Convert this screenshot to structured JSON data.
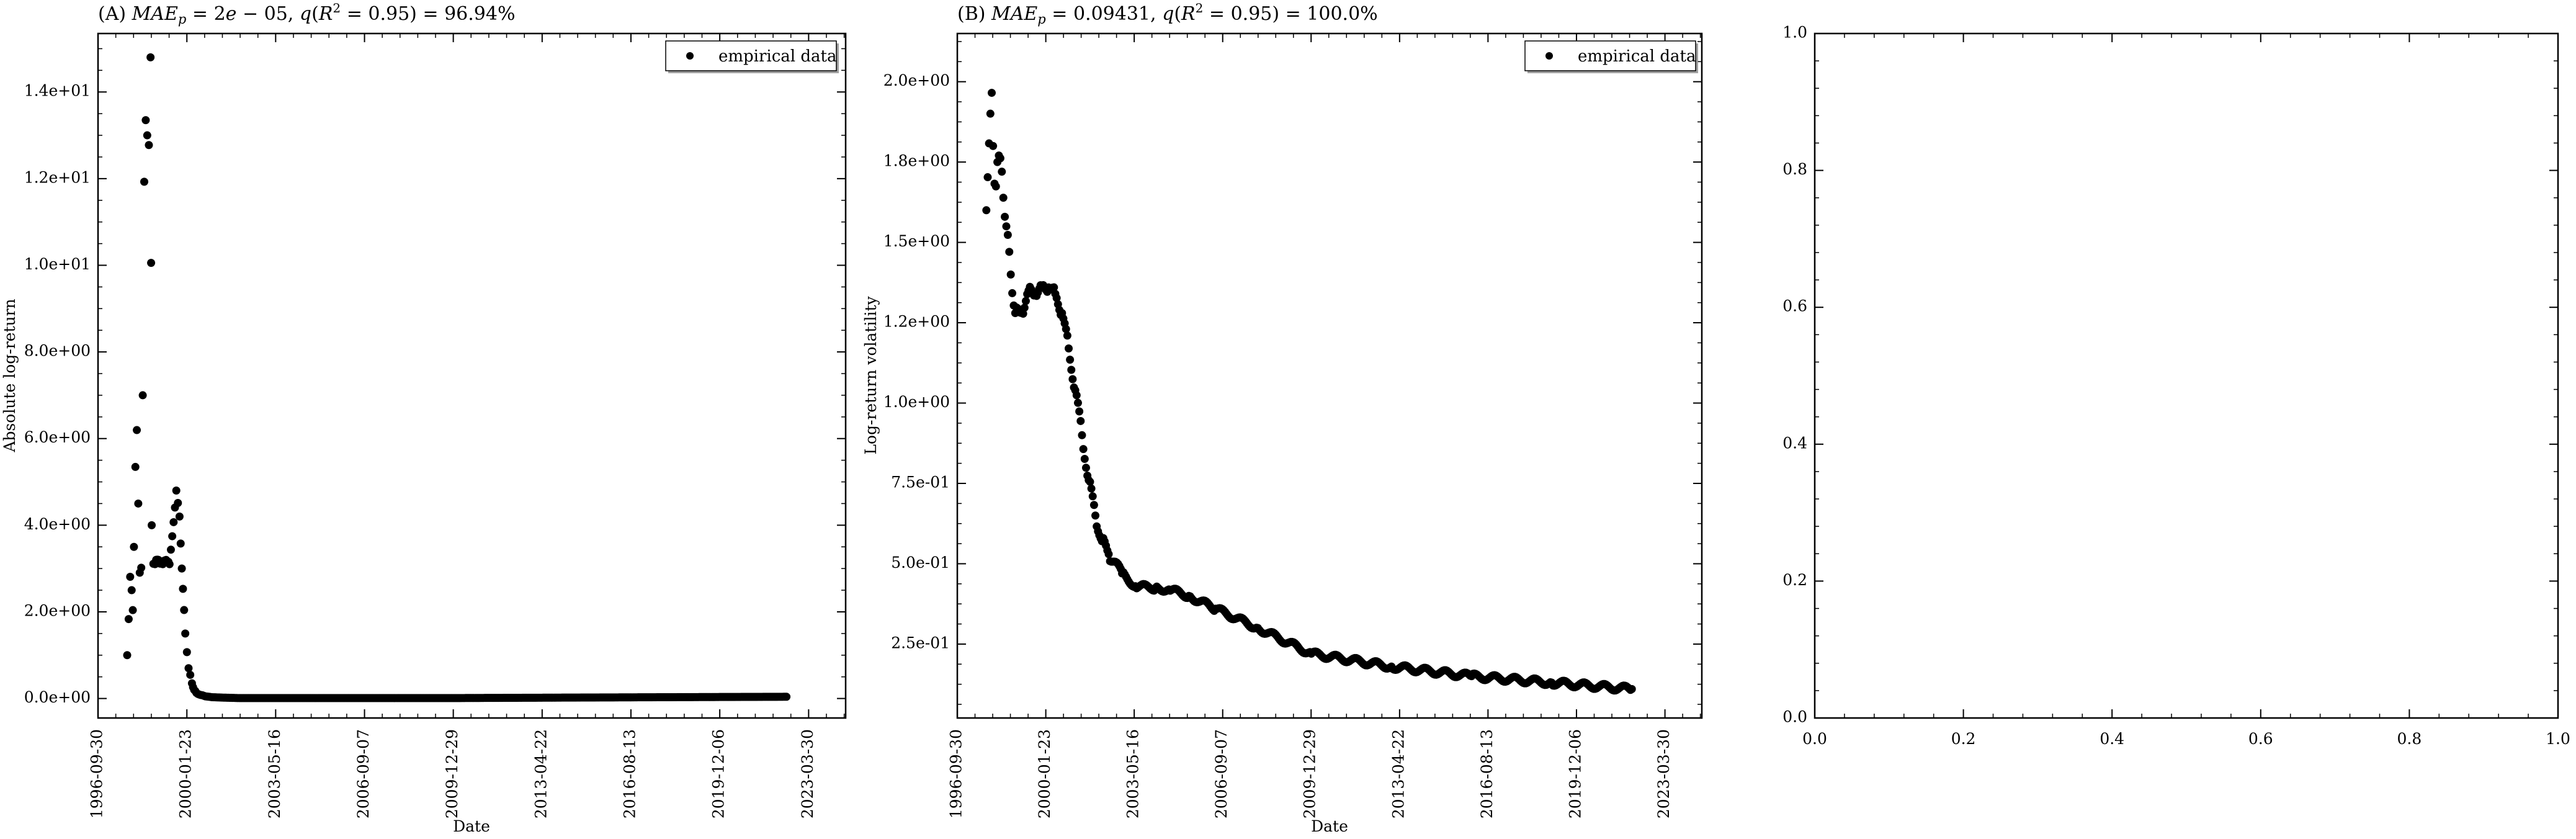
{
  "chart_data": [
    {
      "type": "scatter",
      "title": "(A) MAE_p = 2e − 05, q(R² = 0.95) = 96.94%",
      "xlabel": "Date",
      "ylabel": "Absolute log-return",
      "x_type": "date",
      "xlim": [
        "1996-09-30",
        "2024-08-15"
      ],
      "x_ticks": [
        "1996-09-30",
        "2000-01-23",
        "2003-05-16",
        "2006-09-07",
        "2009-12-29",
        "2013-04-22",
        "2016-08-13",
        "2019-12-06",
        "2023-03-30"
      ],
      "ylim": [
        -0.45,
        15.35
      ],
      "y_ticks": [
        0,
        2,
        4,
        6,
        8,
        10,
        12,
        14
      ],
      "y_tick_labels": [
        "0.0e+00",
        "2.0e+00",
        "4.0e+00",
        "6.0e+00",
        "8.0e+00",
        "1.0e+01",
        "1.2e+01",
        "1.4e+01"
      ],
      "legend": {
        "label": "empirical data",
        "position": "top-right"
      },
      "series": [
        {
          "style": "points",
          "color": "#000000",
          "x": [
            "1997-11-01",
            "1998-01-01",
            "1998-02-01",
            "1998-04-01",
            "1998-06-01",
            "1998-08-01",
            "1998-09-15",
            "1998-10-01",
            "1998-11-15",
            "1999-01-01",
            "1999-03-01",
            "1999-04-15",
            "1999-06-01",
            "1999-09-01",
            "1999-10-15",
            "1999-11-15",
            "2000-01-01",
            "2000-02-15",
            "2000-04-01",
            "2000-05-01",
            "2000-06-01",
            "2000-08-01",
            "2000-10-01",
            "2001-01-01",
            "2001-06-01",
            "2002-01-01",
            "2003-01-01",
            "2006-01-01",
            "2010-01-01",
            "2014-01-01",
            "2018-01-01",
            "2022-06-01"
          ],
          "y": [
            1.0,
            2.5,
            3.5,
            4.5,
            7.0,
            13.0,
            14.8,
            4.0,
            3.1,
            3.2,
            3.1,
            3.2,
            3.1,
            4.8,
            4.2,
            3.0,
            1.5,
            0.7,
            0.35,
            0.2,
            0.13,
            0.08,
            0.05,
            0.03,
            0.02,
            0.01,
            0.01,
            0.01,
            0.01,
            0.02,
            0.03,
            0.04
          ],
          "spread": [
            0.6,
            1.5,
            2.0,
            2.5,
            4.0,
            2.0,
            0.5,
            1.0,
            0.1,
            0.1,
            0.1,
            0.1,
            0.1,
            0.05,
            0.05,
            0.05,
            0.05,
            0.03,
            0.02,
            0.01,
            0.01,
            0.01,
            0.0,
            0.0,
            0.0,
            0.0,
            0.0,
            0.0,
            0.0,
            0.0,
            0.0,
            0.0
          ]
        }
      ]
    },
    {
      "type": "scatter",
      "title": "(B) MAE_p = 0.09431, q(R² = 0.95) = 100.0%",
      "xlabel": "Date",
      "ylabel": "Log-return volatility",
      "x_type": "date",
      "xlim": [
        "1996-09-30",
        "2024-08-15"
      ],
      "x_ticks": [
        "1996-09-30",
        "2000-01-23",
        "2003-05-16",
        "2006-09-07",
        "2009-12-29",
        "2013-04-22",
        "2016-08-13",
        "2019-12-06",
        "2023-03-30"
      ],
      "ylim": [
        0.02,
        2.15
      ],
      "y_ticks": [
        0.25,
        0.5,
        0.75,
        1.0,
        1.25,
        1.5,
        1.75,
        2.0
      ],
      "y_tick_labels": [
        "2.5e-01",
        "5.0e-01",
        "7.5e-01",
        "1.0e+00",
        "1.2e+00",
        "1.5e+00",
        "1.8e+00",
        "2.0e+00"
      ],
      "legend": {
        "label": "empirical data",
        "position": "top-right"
      },
      "series": [
        {
          "style": "points",
          "color": "#000000",
          "x": [
            "1997-11-01",
            "1998-02-01",
            "1998-04-01",
            "1998-06-01",
            "1998-08-01",
            "1998-10-01",
            "1998-12-01",
            "1999-03-01",
            "1999-06-01",
            "1999-09-01",
            "1999-12-01",
            "2000-03-01",
            "2000-06-01",
            "2000-09-01",
            "2000-12-01",
            "2001-03-01",
            "2001-06-01",
            "2001-09-01",
            "2001-12-01",
            "2002-03-01",
            "2002-06-01",
            "2002-12-01",
            "2003-06-01",
            "2004-03-01",
            "2004-09-01",
            "2005-06-01",
            "2006-06-01",
            "2008-01-01",
            "2010-01-01",
            "2013-01-01",
            "2016-01-01",
            "2019-01-01",
            "2022-01-01"
          ],
          "y": [
            1.6,
            1.8,
            1.75,
            1.72,
            1.55,
            1.4,
            1.28,
            1.28,
            1.35,
            1.34,
            1.36,
            1.36,
            1.34,
            1.28,
            1.17,
            1.04,
            0.9,
            0.76,
            0.65,
            0.57,
            0.53,
            0.47,
            0.43,
            0.425,
            0.42,
            0.4,
            0.36,
            0.3,
            0.22,
            0.18,
            0.15,
            0.13,
            0.11
          ],
          "spread": [
            0.15,
            0.25,
            0.05,
            0.03,
            0.03,
            0.02,
            0.02,
            0.02,
            0.02,
            0.02,
            0.02,
            0.02,
            0.02,
            0.02,
            0.02,
            0.02,
            0.02,
            0.02,
            0.02,
            0.02,
            0.02,
            0.01,
            0.01,
            0.01,
            0.01,
            0.01,
            0.01,
            0.01,
            0.01,
            0.01,
            0.01,
            0.01,
            0.01
          ]
        }
      ]
    },
    {
      "type": "scatter",
      "title": "",
      "xlabel": "",
      "ylabel": "",
      "xlim": [
        0,
        1
      ],
      "ylim": [
        0,
        1
      ],
      "x_ticks": [
        0,
        0.2,
        0.4,
        0.6,
        0.8,
        1.0
      ],
      "x_tick_labels": [
        "0.0",
        "0.2",
        "0.4",
        "0.6",
        "0.8",
        "1.0"
      ],
      "y_ticks": [
        0,
        0.2,
        0.4,
        0.6,
        0.8,
        1.0
      ],
      "y_tick_labels": [
        "0.0",
        "0.2",
        "0.4",
        "0.6",
        "0.8",
        "1.0"
      ],
      "series": []
    }
  ]
}
